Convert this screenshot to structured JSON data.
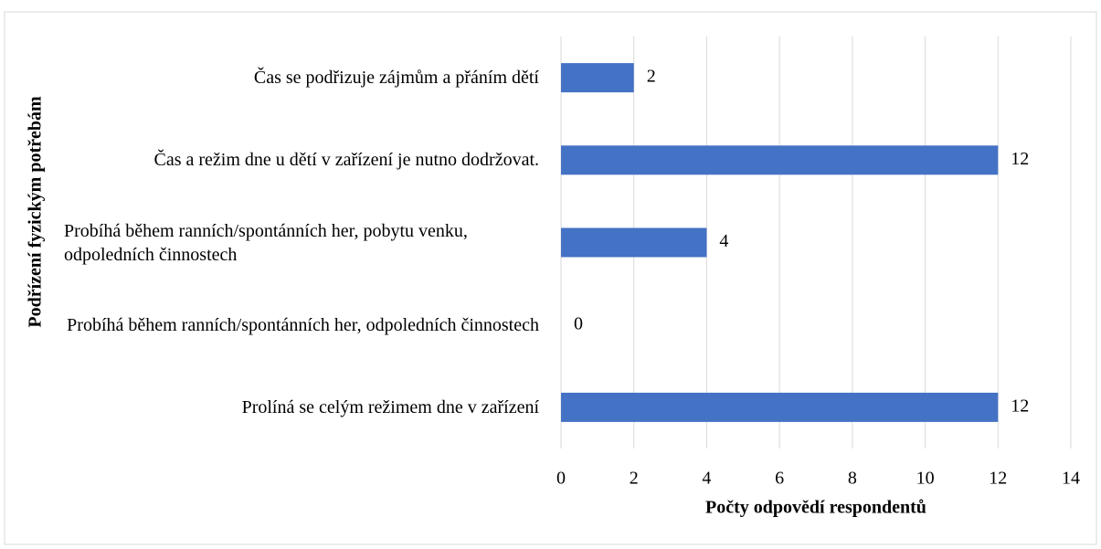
{
  "chart_data": {
    "type": "bar",
    "orientation": "horizontal",
    "categories": [
      "Čas se podřizuje zájmům a přáním dětí",
      "Čas a režim dne u dětí v zařízení je nutno dodržovat.",
      "Probíhá během ranních/spontánních her, pobytu venku, odpoledních činnostech",
      "Probíhá během ranních/spontánních her, odpoledních činnostech",
      "Prolíná se celým režimem dne v zařízení"
    ],
    "values": [
      2,
      12,
      4,
      0,
      12
    ],
    "color": "#4472c4",
    "xlabel": "Počty odpovědí respondentů",
    "ylabel": "Podřízení fyzickým potřebám",
    "xlim": [
      0,
      14
    ],
    "xticks": [
      0,
      2,
      4,
      6,
      8,
      10,
      12,
      14
    ],
    "grid": true
  }
}
